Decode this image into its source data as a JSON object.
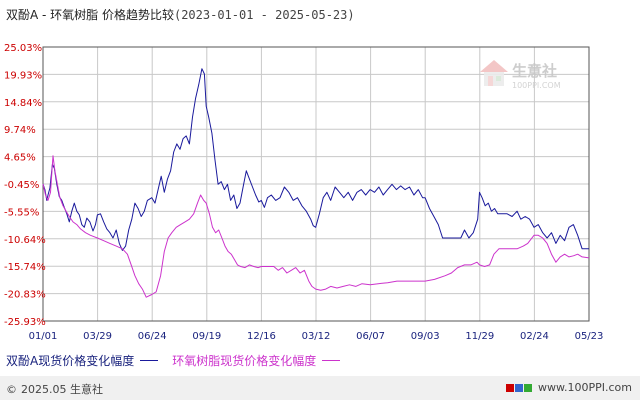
{
  "title": {
    "main": "双酚A - 环氧树脂 价格趋势比较",
    "range": "(2023-01-01 - 2025-05-23)"
  },
  "watermark": {
    "name": "生意社",
    "url": "100PPI.COM"
  },
  "legend": {
    "items": [
      {
        "label": "双酚A现货价格变化幅度",
        "color": "#1a1a9c"
      },
      {
        "label": "环氧树脂现货价格变化幅度",
        "color": "#cc33cc"
      }
    ]
  },
  "footer": {
    "left_symbol": "©",
    "left_text": "2025.05 生意社",
    "right_text": "www.100PPI.com"
  },
  "chart_data": {
    "type": "line",
    "title": "双酚A - 环氧树脂 价格趋势比较",
    "date_range": [
      "2023-01-01",
      "2025-05-23"
    ],
    "ylim": [
      -25.93,
      25.03
    ],
    "yticks": [
      "25.03%",
      "19.93%",
      "14.84%",
      "9.74%",
      "4.65%",
      "-0.45%",
      "-5.55%",
      "-10.64%",
      "-15.74%",
      "-20.83%",
      "-25.93%"
    ],
    "xticks": [
      "01/01",
      "03/29",
      "06/24",
      "09/19",
      "12/16",
      "03/12",
      "06/07",
      "09/03",
      "11/29",
      "02/24",
      "05/23"
    ],
    "grid": true,
    "legend_position": "bottom",
    "series": [
      {
        "name": "双酚A现货价格变化幅度",
        "color": "#1a1a9c",
        "points": [
          [
            "2023-01-01",
            -0.45
          ],
          [
            "2023-01-04",
            -1.5
          ],
          [
            "2023-01-07",
            -3.5
          ],
          [
            "2023-01-09",
            -2.5
          ],
          [
            "2023-01-12",
            -1.2
          ],
          [
            "2023-01-16",
            3.2
          ],
          [
            "2023-01-19",
            2.5
          ],
          [
            "2023-01-23",
            -0.5
          ],
          [
            "2023-01-27",
            -2.8
          ],
          [
            "2023-01-31",
            -3.5
          ],
          [
            "2023-02-04",
            -4.8
          ],
          [
            "2023-02-08",
            -6.0
          ],
          [
            "2023-02-12",
            -7.5
          ],
          [
            "2023-02-16",
            -5.5
          ],
          [
            "2023-02-20",
            -4.0
          ],
          [
            "2023-02-24",
            -5.5
          ],
          [
            "2023-02-28",
            -6.2
          ],
          [
            "2023-03-04",
            -8.0
          ],
          [
            "2023-03-08",
            -8.5
          ],
          [
            "2023-03-12",
            -6.8
          ],
          [
            "2023-03-17",
            -7.5
          ],
          [
            "2023-03-22",
            -9.2
          ],
          [
            "2023-03-26",
            -8.0
          ],
          [
            "2023-03-29",
            -6.2
          ],
          [
            "2023-04-03",
            -6.0
          ],
          [
            "2023-04-08",
            -7.5
          ],
          [
            "2023-04-13",
            -8.8
          ],
          [
            "2023-04-18",
            -9.5
          ],
          [
            "2023-04-23",
            -10.5
          ],
          [
            "2023-04-28",
            -9.0
          ],
          [
            "2023-05-03",
            -11.5
          ],
          [
            "2023-05-08",
            -12.8
          ],
          [
            "2023-05-13",
            -12.0
          ],
          [
            "2023-05-18",
            -9.0
          ],
          [
            "2023-05-23",
            -7.0
          ],
          [
            "2023-05-28",
            -4.0
          ],
          [
            "2023-06-02",
            -5.0
          ],
          [
            "2023-06-07",
            -6.5
          ],
          [
            "2023-06-12",
            -5.5
          ],
          [
            "2023-06-17",
            -3.5
          ],
          [
            "2023-06-24",
            -3.0
          ],
          [
            "2023-06-29",
            -4.0
          ],
          [
            "2023-07-04",
            -1.5
          ],
          [
            "2023-07-09",
            1.0
          ],
          [
            "2023-07-14",
            -2.0
          ],
          [
            "2023-07-19",
            0.5
          ],
          [
            "2023-07-24",
            2.0
          ],
          [
            "2023-07-29",
            5.5
          ],
          [
            "2023-08-03",
            7.0
          ],
          [
            "2023-08-08",
            6.0
          ],
          [
            "2023-08-13",
            8.0
          ],
          [
            "2023-08-18",
            8.5
          ],
          [
            "2023-08-23",
            7.0
          ],
          [
            "2023-08-28",
            12.0
          ],
          [
            "2023-09-02",
            15.5
          ],
          [
            "2023-09-07",
            18.0
          ],
          [
            "2023-09-12",
            21.0
          ],
          [
            "2023-09-16",
            20.0
          ],
          [
            "2023-09-19",
            14.0
          ],
          [
            "2023-09-23",
            12.0
          ],
          [
            "2023-09-28",
            9.0
          ],
          [
            "2023-10-03",
            4.0
          ],
          [
            "2023-10-08",
            -0.5
          ],
          [
            "2023-10-13",
            0.0
          ],
          [
            "2023-10-18",
            -1.5
          ],
          [
            "2023-10-23",
            -0.5
          ],
          [
            "2023-10-28",
            -3.5
          ],
          [
            "2023-11-02",
            -2.5
          ],
          [
            "2023-11-07",
            -5.0
          ],
          [
            "2023-11-12",
            -4.0
          ],
          [
            "2023-11-17",
            -1.0
          ],
          [
            "2023-11-22",
            2.0
          ],
          [
            "2023-11-27",
            0.5
          ],
          [
            "2023-12-02",
            -1.0
          ],
          [
            "2023-12-07",
            -2.5
          ],
          [
            "2023-12-12",
            -3.8
          ],
          [
            "2023-12-16",
            -3.5
          ],
          [
            "2023-12-21",
            -4.8
          ],
          [
            "2023-12-26",
            -3.0
          ],
          [
            "2024-01-01",
            -2.5
          ],
          [
            "2024-01-08",
            -3.5
          ],
          [
            "2024-01-15",
            -3.0
          ],
          [
            "2024-01-22",
            -1.0
          ],
          [
            "2024-01-29",
            -2.0
          ],
          [
            "2024-02-05",
            -3.5
          ],
          [
            "2024-02-12",
            -3.0
          ],
          [
            "2024-02-19",
            -4.5
          ],
          [
            "2024-02-26",
            -5.5
          ],
          [
            "2024-03-04",
            -7.0
          ],
          [
            "2024-03-08",
            -8.2
          ],
          [
            "2024-03-12",
            -8.5
          ],
          [
            "2024-03-18",
            -6.0
          ],
          [
            "2024-03-24",
            -3.0
          ],
          [
            "2024-03-30",
            -2.0
          ],
          [
            "2024-04-05",
            -3.5
          ],
          [
            "2024-04-12",
            -1.0
          ],
          [
            "2024-04-19",
            -2.0
          ],
          [
            "2024-04-26",
            -3.0
          ],
          [
            "2024-05-03",
            -2.0
          ],
          [
            "2024-05-10",
            -3.5
          ],
          [
            "2024-05-17",
            -2.0
          ],
          [
            "2024-05-24",
            -1.5
          ],
          [
            "2024-05-31",
            -2.5
          ],
          [
            "2024-06-07",
            -1.5
          ],
          [
            "2024-06-14",
            -2.0
          ],
          [
            "2024-06-21",
            -1.0
          ],
          [
            "2024-06-28",
            -2.5
          ],
          [
            "2024-07-05",
            -1.5
          ],
          [
            "2024-07-12",
            -0.5
          ],
          [
            "2024-07-19",
            -1.5
          ],
          [
            "2024-07-26",
            -0.8
          ],
          [
            "2024-08-02",
            -1.5
          ],
          [
            "2024-08-09",
            -1.0
          ],
          [
            "2024-08-16",
            -2.5
          ],
          [
            "2024-08-23",
            -1.5
          ],
          [
            "2024-08-30",
            -3.0
          ],
          [
            "2024-09-03",
            -3.0
          ],
          [
            "2024-09-10",
            -5.0
          ],
          [
            "2024-09-17",
            -6.5
          ],
          [
            "2024-09-24",
            -8.0
          ],
          [
            "2024-10-01",
            -10.5
          ],
          [
            "2024-10-10",
            -10.5
          ],
          [
            "2024-10-20",
            -10.5
          ],
          [
            "2024-10-30",
            -10.5
          ],
          [
            "2024-11-05",
            -9.0
          ],
          [
            "2024-11-12",
            -10.5
          ],
          [
            "2024-11-19",
            -9.5
          ],
          [
            "2024-11-26",
            -7.0
          ],
          [
            "2024-11-29",
            -2.0
          ],
          [
            "2024-12-03",
            -3.0
          ],
          [
            "2024-12-08",
            -4.5
          ],
          [
            "2024-12-13",
            -4.0
          ],
          [
            "2024-12-18",
            -5.5
          ],
          [
            "2024-12-23",
            -5.0
          ],
          [
            "2024-12-28",
            -6.0
          ],
          [
            "2025-01-04",
            -6.0
          ],
          [
            "2025-01-12",
            -6.0
          ],
          [
            "2025-01-20",
            -6.5
          ],
          [
            "2025-01-28",
            -5.5
          ],
          [
            "2025-02-03",
            -7.0
          ],
          [
            "2025-02-10",
            -6.5
          ],
          [
            "2025-02-17",
            -7.0
          ],
          [
            "2025-02-24",
            -8.5
          ],
          [
            "2025-03-03",
            -8.0
          ],
          [
            "2025-03-10",
            -9.5
          ],
          [
            "2025-03-17",
            -10.5
          ],
          [
            "2025-03-24",
            -9.5
          ],
          [
            "2025-03-31",
            -11.5
          ],
          [
            "2025-04-07",
            -10.0
          ],
          [
            "2025-04-14",
            -11.0
          ],
          [
            "2025-04-21",
            -8.5
          ],
          [
            "2025-04-28",
            -8.0
          ],
          [
            "2025-05-05",
            -10.0
          ],
          [
            "2025-05-12",
            -12.5
          ],
          [
            "2025-05-23",
            -12.5
          ]
        ]
      },
      {
        "name": "环氧树脂现货价格变化幅度",
        "color": "#cc33cc",
        "points": [
          [
            "2023-01-01",
            -0.45
          ],
          [
            "2023-01-05",
            -2.5
          ],
          [
            "2023-01-09",
            -3.5
          ],
          [
            "2023-01-13",
            -2.0
          ],
          [
            "2023-01-17",
            4.8
          ],
          [
            "2023-01-20",
            2.0
          ],
          [
            "2023-01-24",
            -0.5
          ],
          [
            "2023-01-28",
            -3.0
          ],
          [
            "2023-02-02",
            -4.5
          ],
          [
            "2023-02-07",
            -5.5
          ],
          [
            "2023-02-12",
            -6.5
          ],
          [
            "2023-02-18",
            -7.5
          ],
          [
            "2023-02-24",
            -8.0
          ],
          [
            "2023-03-02",
            -8.8
          ],
          [
            "2023-03-10",
            -9.5
          ],
          [
            "2023-03-18",
            -10.0
          ],
          [
            "2023-03-29",
            -10.5
          ],
          [
            "2023-04-08",
            -11.0
          ],
          [
            "2023-04-18",
            -11.5
          ],
          [
            "2023-04-28",
            -12.0
          ],
          [
            "2023-05-08",
            -12.5
          ],
          [
            "2023-05-16",
            -13.5
          ],
          [
            "2023-05-22",
            -15.5
          ],
          [
            "2023-05-28",
            -17.5
          ],
          [
            "2023-06-03",
            -19.0
          ],
          [
            "2023-06-09",
            -20.0
          ],
          [
            "2023-06-15",
            -21.5
          ],
          [
            "2023-06-24",
            -21.0
          ],
          [
            "2023-07-01",
            -20.5
          ],
          [
            "2023-07-08",
            -17.5
          ],
          [
            "2023-07-14",
            -13.0
          ],
          [
            "2023-07-20",
            -10.5
          ],
          [
            "2023-07-26",
            -9.5
          ],
          [
            "2023-08-02",
            -8.5
          ],
          [
            "2023-08-09",
            -8.0
          ],
          [
            "2023-08-16",
            -7.5
          ],
          [
            "2023-08-23",
            -7.0
          ],
          [
            "2023-08-30",
            -6.0
          ],
          [
            "2023-09-05",
            -4.0
          ],
          [
            "2023-09-10",
            -2.5
          ],
          [
            "2023-09-15",
            -3.5
          ],
          [
            "2023-09-19",
            -4.0
          ],
          [
            "2023-09-24",
            -6.0
          ],
          [
            "2023-09-29",
            -8.5
          ],
          [
            "2023-10-04",
            -9.5
          ],
          [
            "2023-10-09",
            -9.0
          ],
          [
            "2023-10-14",
            -10.5
          ],
          [
            "2023-10-19",
            -12.0
          ],
          [
            "2023-10-24",
            -13.0
          ],
          [
            "2023-10-29",
            -13.5
          ],
          [
            "2023-11-03",
            -14.5
          ],
          [
            "2023-11-08",
            -15.5
          ],
          [
            "2023-11-13",
            -15.8
          ],
          [
            "2023-11-20",
            -16.0
          ],
          [
            "2023-11-27",
            -15.5
          ],
          [
            "2023-12-04",
            -15.8
          ],
          [
            "2023-12-11",
            -16.0
          ],
          [
            "2023-12-16",
            -15.8
          ],
          [
            "2024-01-05",
            -15.8
          ],
          [
            "2024-01-12",
            -16.5
          ],
          [
            "2024-01-19",
            -16.0
          ],
          [
            "2024-01-26",
            -17.0
          ],
          [
            "2024-02-02",
            -16.5
          ],
          [
            "2024-02-09",
            -16.0
          ],
          [
            "2024-02-16",
            -17.0
          ],
          [
            "2024-02-23",
            -16.5
          ],
          [
            "2024-03-01",
            -18.5
          ],
          [
            "2024-03-06",
            -19.5
          ],
          [
            "2024-03-12",
            -20.0
          ],
          [
            "2024-03-20",
            -20.2
          ],
          [
            "2024-03-28",
            -20.0
          ],
          [
            "2024-04-05",
            -19.5
          ],
          [
            "2024-04-15",
            -19.8
          ],
          [
            "2024-04-25",
            -19.5
          ],
          [
            "2024-05-05",
            -19.2
          ],
          [
            "2024-05-15",
            -19.5
          ],
          [
            "2024-05-25",
            -19.0
          ],
          [
            "2024-06-07",
            -19.2
          ],
          [
            "2024-06-20",
            -19.0
          ],
          [
            "2024-07-05",
            -18.8
          ],
          [
            "2024-07-20",
            -18.5
          ],
          [
            "2024-08-05",
            -18.5
          ],
          [
            "2024-08-20",
            -18.5
          ],
          [
            "2024-09-03",
            -18.5
          ],
          [
            "2024-09-18",
            -18.2
          ],
          [
            "2024-10-05",
            -17.5
          ],
          [
            "2024-10-15",
            -17.0
          ],
          [
            "2024-10-25",
            -16.0
          ],
          [
            "2024-11-05",
            -15.5
          ],
          [
            "2024-11-15",
            -15.5
          ],
          [
            "2024-11-25",
            -15.0
          ],
          [
            "2024-11-29",
            -15.5
          ],
          [
            "2024-12-07",
            -15.8
          ],
          [
            "2024-12-15",
            -15.5
          ],
          [
            "2024-12-22",
            -13.5
          ],
          [
            "2024-12-30",
            -12.5
          ],
          [
            "2025-01-08",
            -12.5
          ],
          [
            "2025-01-18",
            -12.5
          ],
          [
            "2025-01-28",
            -12.5
          ],
          [
            "2025-02-07",
            -12.0
          ],
          [
            "2025-02-14",
            -11.5
          ],
          [
            "2025-02-24",
            -10.0
          ],
          [
            "2025-03-03",
            -10.0
          ],
          [
            "2025-03-10",
            -10.5
          ],
          [
            "2025-03-17",
            -11.5
          ],
          [
            "2025-03-24",
            -13.5
          ],
          [
            "2025-03-31",
            -15.0
          ],
          [
            "2025-04-07",
            -14.0
          ],
          [
            "2025-04-14",
            -13.5
          ],
          [
            "2025-04-21",
            -14.0
          ],
          [
            "2025-04-28",
            -13.8
          ],
          [
            "2025-05-05",
            -13.5
          ],
          [
            "2025-05-12",
            -14.0
          ],
          [
            "2025-05-23",
            -14.2
          ]
        ]
      }
    ]
  }
}
